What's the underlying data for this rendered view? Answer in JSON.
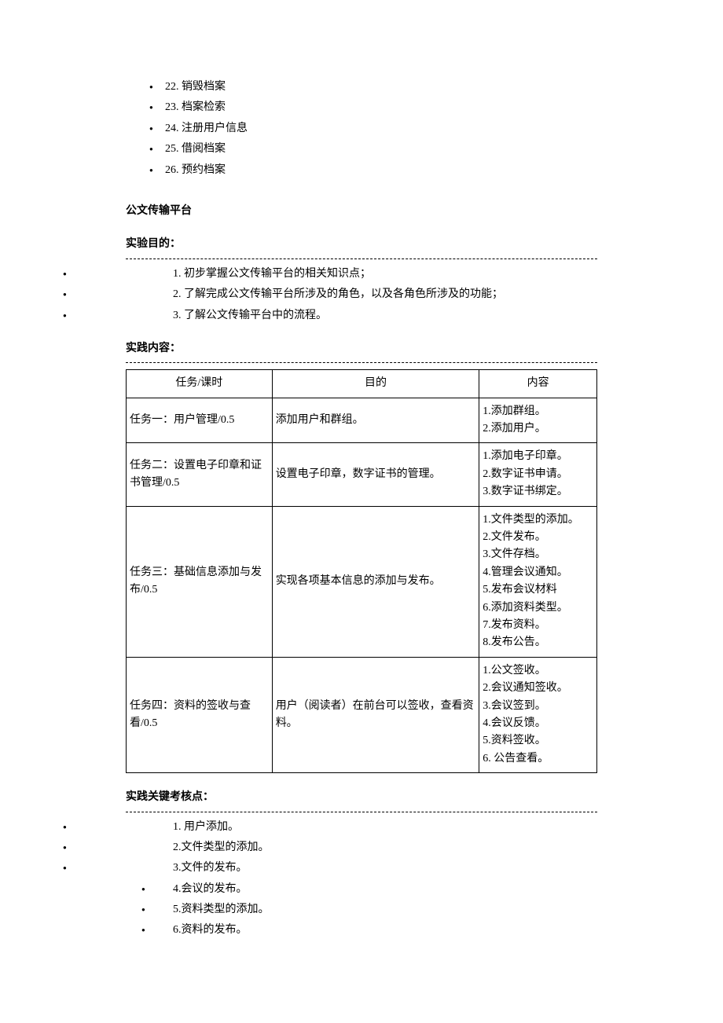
{
  "top_items": [
    "22. 销毁档案",
    "23. 档案检索",
    "24. 注册用户信息",
    "25. 借阅档案",
    "26. 预约档案"
  ],
  "platform_title": "公文传输平台",
  "objectives_heading": "实验目的：",
  "objectives": [
    "1. 初步掌握公文传输平台的相关知识点；",
    "2. 了解完成公文传输平台所涉及的角色，以及各角色所涉及的功能；",
    "3. 了解公文传输平台中的流程。"
  ],
  "content_heading": "实践内容：",
  "table": {
    "headers": [
      "任务/课时",
      "目的",
      "内容"
    ],
    "rows": [
      {
        "task": "任务一：用户管理/0.5",
        "purpose": "添加用户和群组。",
        "content": "1.添加群组。\n2.添加用户。"
      },
      {
        "task": "任务二：设置电子印章和证书管理/0.5",
        "purpose": "设置电子印章，数字证书的管理。",
        "content": "1.添加电子印章。\n2.数字证书申请。\n3.数字证书绑定。"
      },
      {
        "task": "任务三：基础信息添加与发布/0.5",
        "purpose": "实现各项基本信息的添加与发布。",
        "content": "1.文件类型的添加。\n2.文件发布。\n3.文件存档。\n4.管理会议通知。\n5.发布会议材料\n6.添加资料类型。\n7.发布资料。\n8.发布公告。"
      },
      {
        "task": "任务四：资料的签收与查看/0.5",
        "purpose": "用户（阅读者）在前台可以签收，查看资料。",
        "content": "1.公文签收。\n2.会议通知签收。\n3.会议签到。\n4.会议反馈。\n5.资料签收。\n6. 公告查看。"
      }
    ]
  },
  "assessment_heading": "实践关键考核点：",
  "assessment": [
    {
      "text": "1. 用户添加。",
      "outer": true
    },
    {
      "text": "2.文件类型的添加。",
      "outer": true
    },
    {
      "text": "3.文件的发布。",
      "outer": true
    },
    {
      "text": "4.会议的发布。",
      "outer": false
    },
    {
      "text": "5.资料类型的添加。",
      "outer": false
    },
    {
      "text": "6.资料的发布。",
      "outer": false
    }
  ],
  "styles": {
    "text_color": "#000000",
    "background_color": "#ffffff",
    "border_color": "#000000",
    "dash_color": "#000000",
    "font_size": 14
  }
}
